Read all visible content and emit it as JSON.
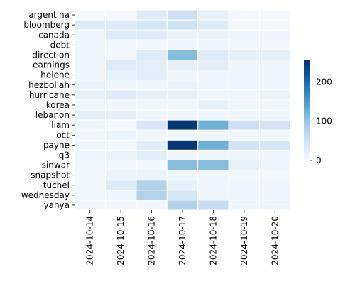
{
  "chart_data": {
    "type": "heatmap",
    "title": "",
    "xlabel": "",
    "ylabel": "",
    "x": [
      "2024-10-14",
      "2024-10-15",
      "2024-10-16",
      "2024-10-17",
      "2024-10-18",
      "2024-10-19",
      "2024-10-20"
    ],
    "y": [
      "argentina",
      "bloomberg",
      "canada",
      "debt",
      "direction",
      "earnings",
      "helene",
      "hezbollah",
      "hurricane",
      "korea",
      "lebanon",
      "liam",
      "oct",
      "payne",
      "q3",
      "sinwar",
      "snapshot",
      "tuchel",
      "wednesday",
      "yahya"
    ],
    "values": [
      [
        3,
        5,
        30,
        55,
        20,
        5,
        5
      ],
      [
        30,
        30,
        40,
        50,
        30,
        5,
        5
      ],
      [
        10,
        35,
        30,
        15,
        15,
        10,
        10
      ],
      [
        10,
        5,
        5,
        10,
        10,
        5,
        5
      ],
      [
        10,
        5,
        30,
        110,
        30,
        20,
        20
      ],
      [
        10,
        30,
        25,
        20,
        25,
        10,
        10
      ],
      [
        10,
        20,
        25,
        10,
        10,
        10,
        10
      ],
      [
        15,
        10,
        10,
        15,
        10,
        10,
        10
      ],
      [
        20,
        30,
        20,
        20,
        10,
        10,
        15
      ],
      [
        10,
        10,
        10,
        10,
        20,
        10,
        10
      ],
      [
        20,
        20,
        10,
        10,
        10,
        10,
        10
      ],
      [
        10,
        5,
        40,
        250,
        125,
        55,
        45
      ],
      [
        10,
        15,
        10,
        10,
        10,
        10,
        10
      ],
      [
        10,
        5,
        25,
        250,
        125,
        45,
        40
      ],
      [
        10,
        15,
        25,
        10,
        10,
        10,
        10
      ],
      [
        5,
        5,
        5,
        110,
        110,
        20,
        10
      ],
      [
        5,
        15,
        15,
        10,
        10,
        5,
        5
      ],
      [
        5,
        30,
        80,
        20,
        10,
        10,
        10
      ],
      [
        5,
        10,
        80,
        40,
        10,
        10,
        10
      ],
      [
        5,
        5,
        5,
        80,
        60,
        10,
        10
      ]
    ],
    "colorbar": {
      "min": 0,
      "max": 255,
      "ticks": [
        0,
        100,
        200
      ]
    },
    "colormap": {
      "low": "#f7fbff",
      "high": "#08306b"
    },
    "grid_line_color": "#ffffff"
  }
}
